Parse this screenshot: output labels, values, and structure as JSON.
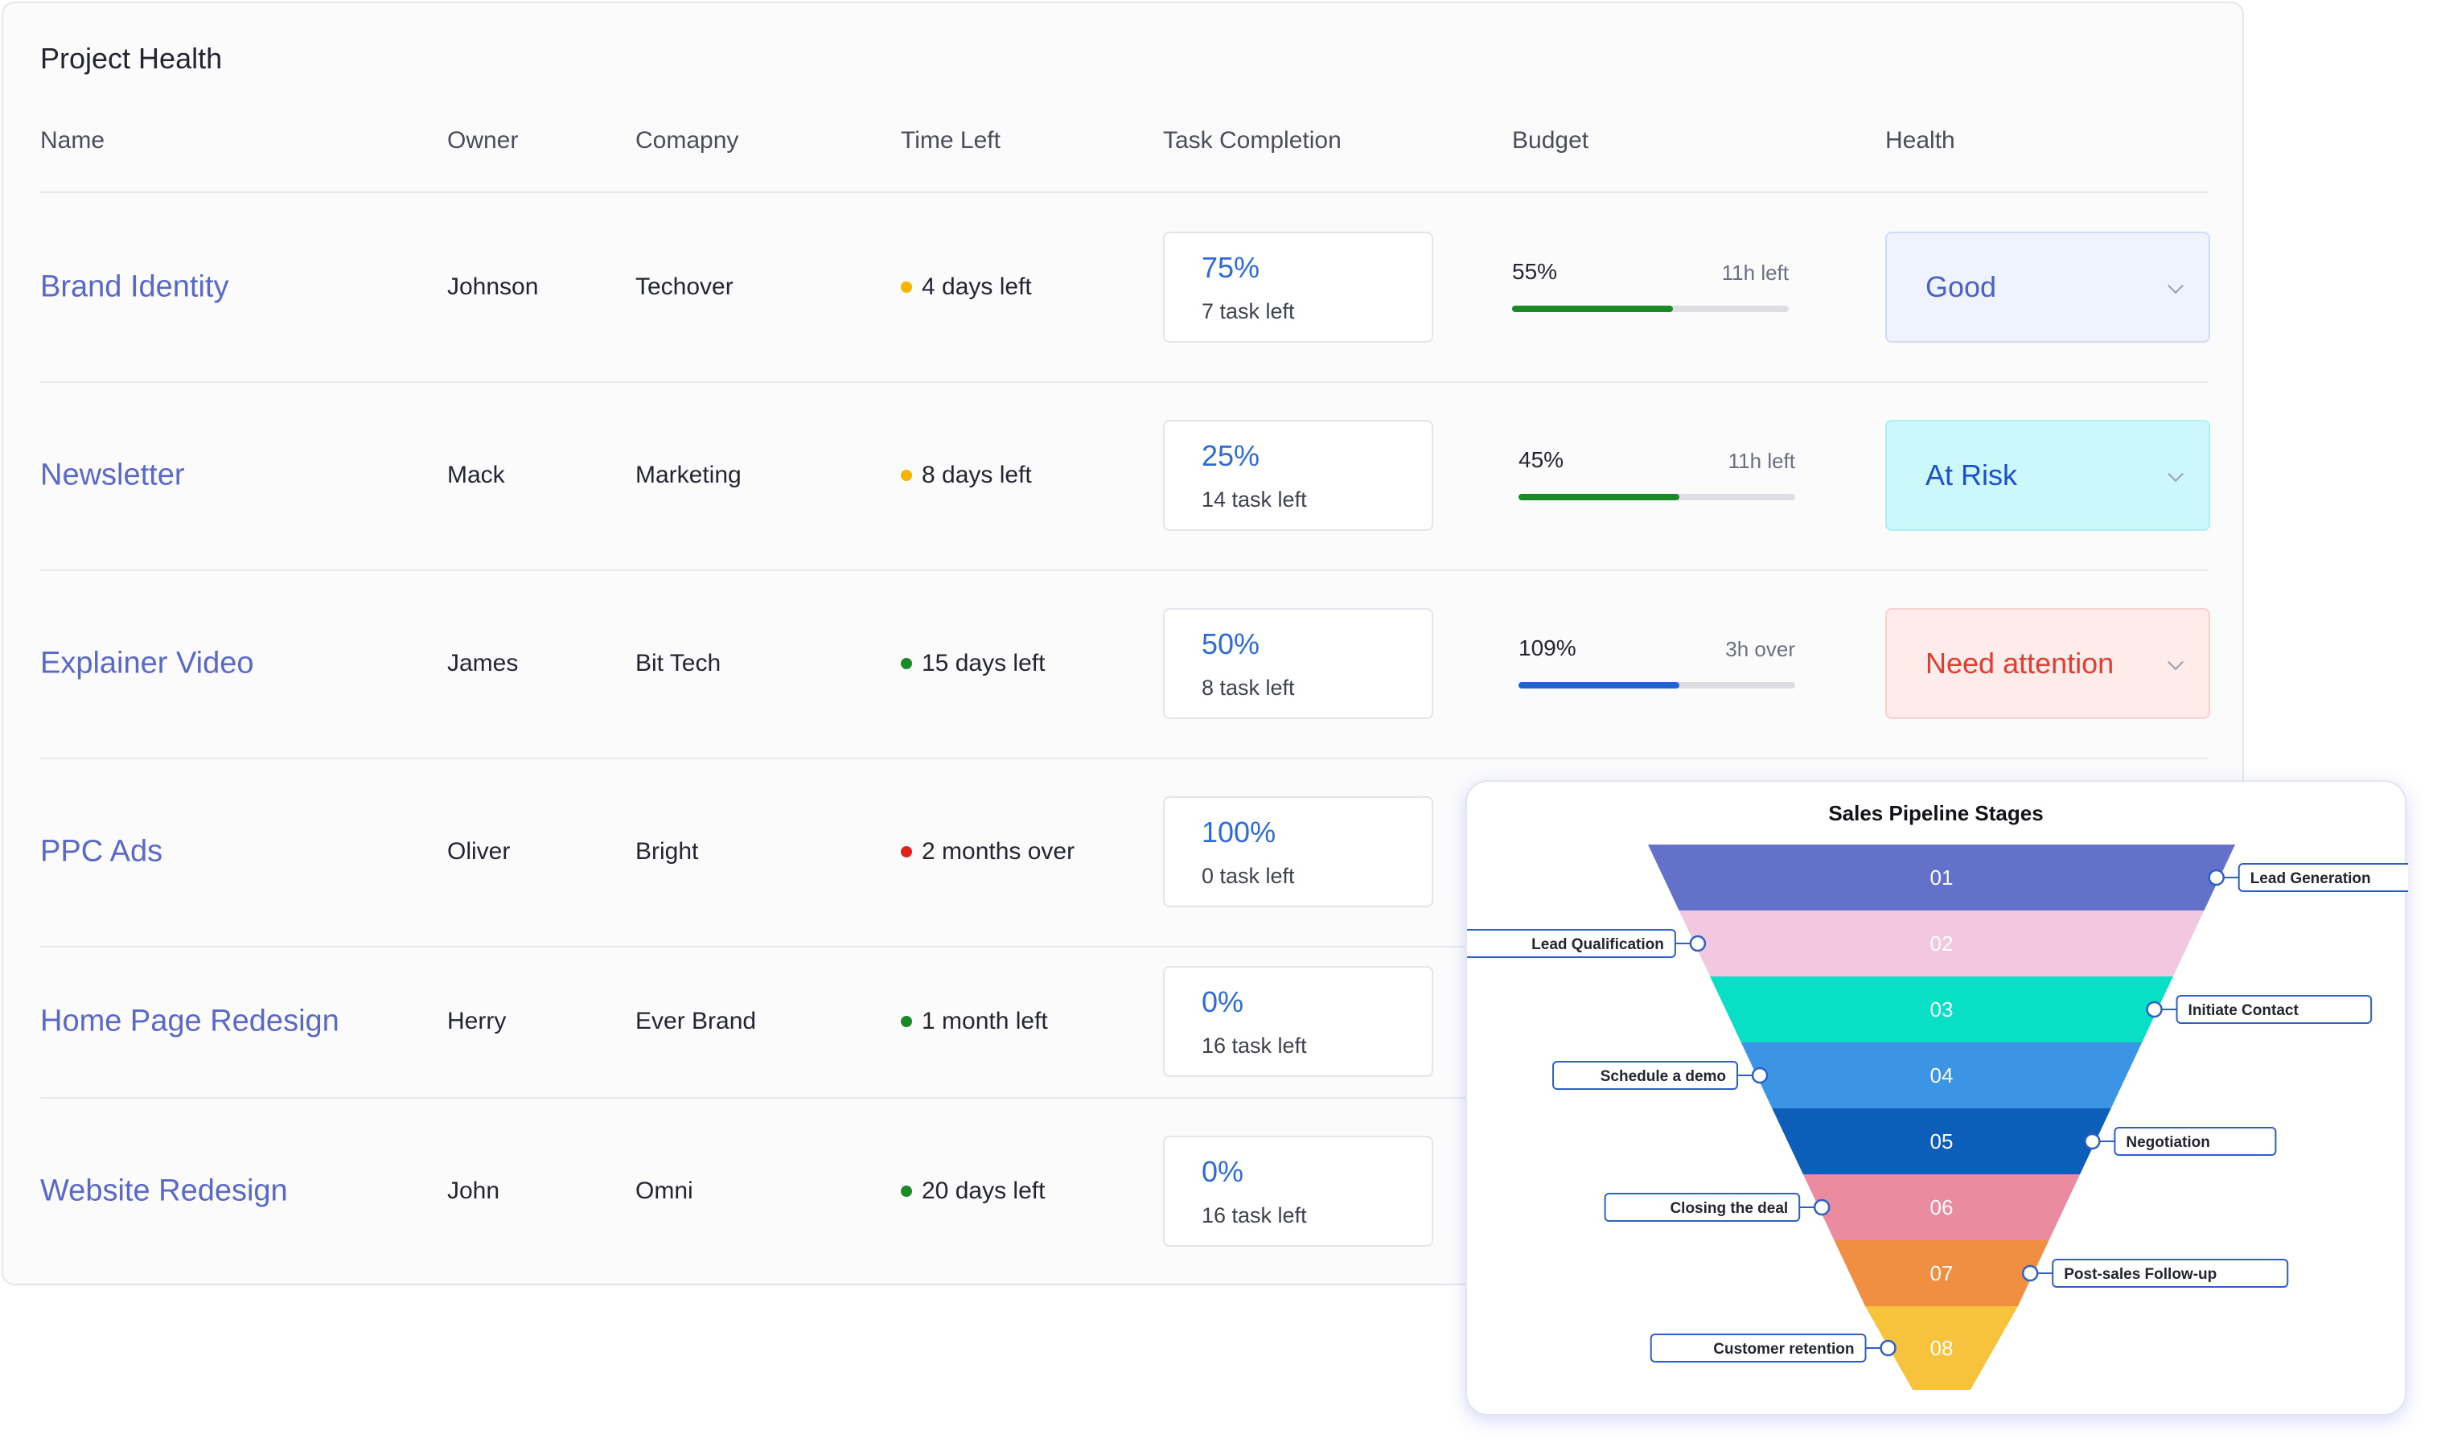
{
  "card": {
    "title": "Project Health"
  },
  "columns": [
    "Name",
    "Owner",
    "Comapny",
    "Time Left",
    "Task Completion",
    "Budget",
    "Health"
  ],
  "rows": [
    {
      "name": "Brand Identity",
      "owner": "Johnson",
      "company": "Techover",
      "time_left": "4 days left",
      "time_status_color": "#f5b400",
      "task_pct": "75%",
      "task_left": "7 task left",
      "budget_pct": "55%",
      "budget_note": "11h left",
      "budget_fill_fraction": 0.58,
      "budget_color": "#1a8a27",
      "health": "Good",
      "health_bg": "#eef3fd",
      "health_border": "#cfdcf6",
      "health_text": "#4a62c6"
    },
    {
      "name": "Newsletter",
      "owner": "Mack",
      "company": "Marketing",
      "time_left": "8 days left",
      "time_status_color": "#f5b400",
      "task_pct": "25%",
      "task_left": "14 task left",
      "budget_pct": "45%",
      "budget_note": "11h left",
      "budget_fill_fraction": 0.58,
      "budget_color": "#1a8a27",
      "health": "At Risk",
      "health_bg": "#ccf8fc",
      "health_border": "#aeeef5",
      "health_text": "#1e4fd0"
    },
    {
      "name": "Explainer Video",
      "owner": "James",
      "company": "Bit Tech",
      "time_left": "15 days left",
      "time_status_color": "#1a8a27",
      "task_pct": "50%",
      "task_left": "8 task left",
      "budget_pct": "109%",
      "budget_note": "3h over",
      "budget_fill_fraction": 0.58,
      "budget_color": "#2160d8",
      "health": "Need attention",
      "health_bg": "#fdecea",
      "health_border": "#f5d2cd",
      "health_text": "#e43c30"
    },
    {
      "name": "PPC Ads",
      "owner": "Oliver",
      "company": "Bright",
      "time_left": "2 months over",
      "time_status_color": "#e0241b",
      "task_pct": "100%",
      "task_left": "0 task left"
    },
    {
      "name": "Home Page Redesign",
      "owner": "Herry",
      "company": "Ever Brand",
      "time_left": "1 month left",
      "time_status_color": "#1a8a27",
      "task_pct": "0%",
      "task_left": "16 task left"
    },
    {
      "name": "Website Redesign",
      "owner": "John",
      "company": "Omni",
      "time_left": "20 days left",
      "time_status_color": "#1a8a27",
      "task_pct": "0%",
      "task_left": "16 task left"
    }
  ],
  "funnel": {
    "title": "Sales Pipeline Stages",
    "stages": [
      {
        "num": "01",
        "label": "Lead Generation",
        "color": "#6471c9",
        "side": "right"
      },
      {
        "num": "02",
        "label": "Lead Qualification",
        "color": "#f1c8e0",
        "side": "left"
      },
      {
        "num": "03",
        "label": "Initiate Contact",
        "color": "#08dfc5",
        "side": "right"
      },
      {
        "num": "04",
        "label": "Schedule a demo",
        "color": "#3b95e4",
        "side": "left"
      },
      {
        "num": "05",
        "label": "Negotiation",
        "color": "#0c5eb8",
        "side": "right"
      },
      {
        "num": "06",
        "label": "Closing the deal",
        "color": "#ea8ba0",
        "side": "left"
      },
      {
        "num": "07",
        "label": "Post-sales Follow-up",
        "color": "#f08f42",
        "side": "right"
      },
      {
        "num": "08",
        "label": "Customer retention",
        "color": "#f7c23c",
        "side": "left"
      }
    ]
  }
}
